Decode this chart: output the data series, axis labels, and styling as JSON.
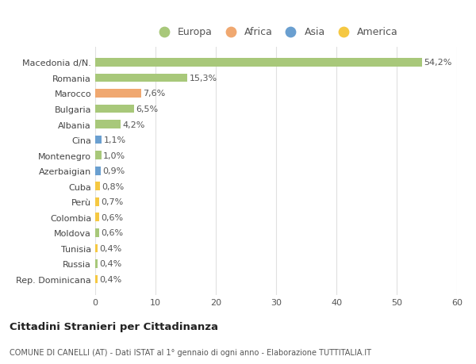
{
  "categories": [
    "Rep. Dominicana",
    "Russia",
    "Tunisia",
    "Moldova",
    "Colombia",
    "Perù",
    "Cuba",
    "Azerbaigian",
    "Montenegro",
    "Cina",
    "Albania",
    "Bulgaria",
    "Marocco",
    "Romania",
    "Macedonia d/N."
  ],
  "values": [
    0.4,
    0.4,
    0.4,
    0.6,
    0.6,
    0.7,
    0.8,
    0.9,
    1.0,
    1.1,
    4.2,
    6.5,
    7.6,
    15.3,
    54.2
  ],
  "labels": [
    "0,4%",
    "0,4%",
    "0,4%",
    "0,6%",
    "0,6%",
    "0,7%",
    "0,8%",
    "0,9%",
    "1,0%",
    "1,1%",
    "4,2%",
    "6,5%",
    "7,6%",
    "15,3%",
    "54,2%"
  ],
  "colors": [
    "#f5c842",
    "#a8c87a",
    "#f5c842",
    "#a8c87a",
    "#f5c842",
    "#f5c842",
    "#f5c842",
    "#6a9fd0",
    "#a8c87a",
    "#6a9fd0",
    "#a8c87a",
    "#a8c87a",
    "#f0a870",
    "#a8c87a",
    "#a8c87a"
  ],
  "legend_labels": [
    "Europa",
    "Africa",
    "Asia",
    "America"
  ],
  "legend_colors": [
    "#a8c87a",
    "#f0a870",
    "#6a9fd0",
    "#f5c842"
  ],
  "title": "Cittadini Stranieri per Cittadinanza",
  "subtitle": "COMUNE DI CANELLI (AT) - Dati ISTAT al 1° gennaio di ogni anno - Elaborazione TUTTITALIA.IT",
  "xlim": [
    0,
    60
  ],
  "xticks": [
    0,
    10,
    20,
    30,
    40,
    50,
    60
  ],
  "bg_color": "#ffffff",
  "grid_color": "#e0e0e0",
  "bar_height": 0.55,
  "label_fontsize": 8,
  "tick_fontsize": 8,
  "ytick_fontsize": 8
}
